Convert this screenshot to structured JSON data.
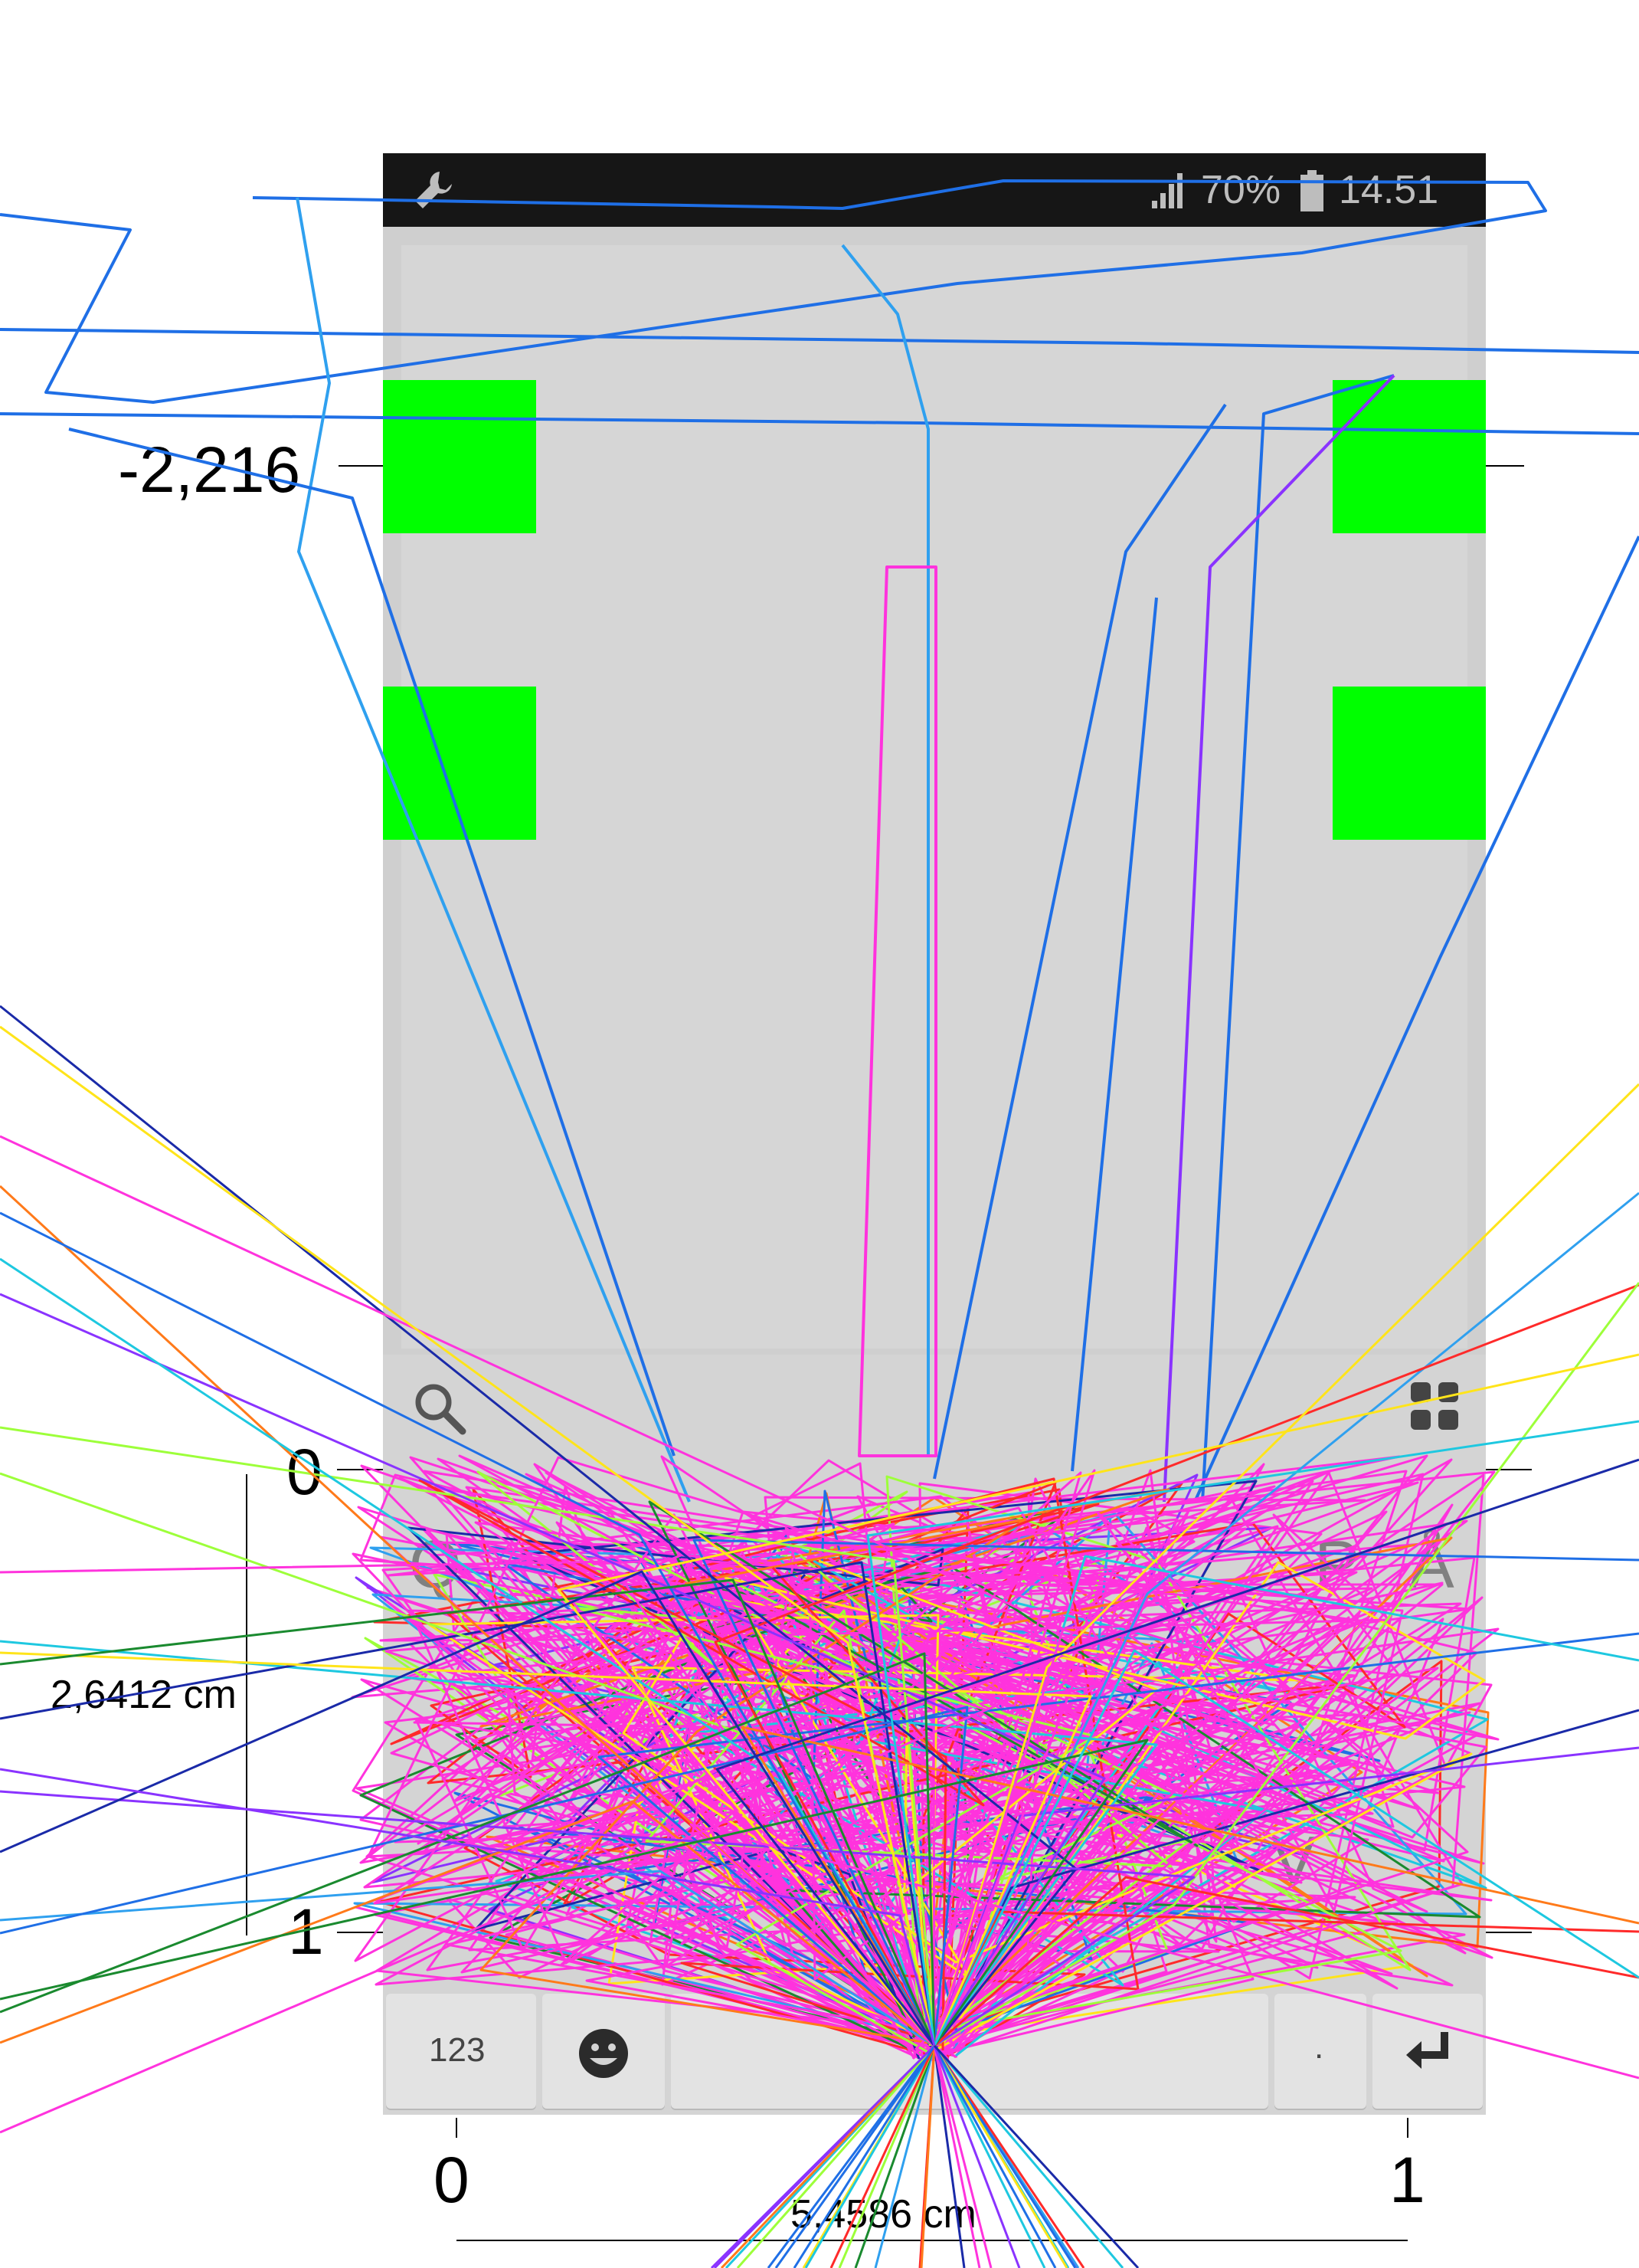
{
  "status_bar": {
    "battery_percent": "70%",
    "time": "14.51",
    "icons": [
      "wrench-icon",
      "signal-icon",
      "battery-icon"
    ]
  },
  "keyboard": {
    "top_icons": [
      "search-icon",
      "apps-grid-icon"
    ],
    "row1_visible": [
      "Q",
      "P",
      "Å"
    ],
    "row3_visible": [
      "V"
    ],
    "bottom": {
      "numbers_key": "123",
      "emoji_icon": "smiley-icon",
      "period_key": ".",
      "enter_icon": "enter-icon"
    }
  },
  "annotations": {
    "y_top_value": "-2,216",
    "y_zero_label": "0",
    "y_one_label": "1",
    "x_zero_label": "0",
    "x_one_label": "1",
    "height_measure": "2,6412 cm",
    "width_measure": "5,4586 cm"
  },
  "colors": {
    "status_bar": "#161616",
    "screen_bg": "#cfcfcf",
    "target_squares": "#00ff00",
    "trace_dominant": "#ff33dd",
    "trace_colors": [
      "#ff33dd",
      "#1f6fe6",
      "#2fa0ef",
      "#8a33ff",
      "#1ec8e0",
      "#ff7a1a",
      "#1a8a2f",
      "#ffe41a",
      "#ff2a2a",
      "#1a2aa8",
      "#9dff3a"
    ]
  }
}
